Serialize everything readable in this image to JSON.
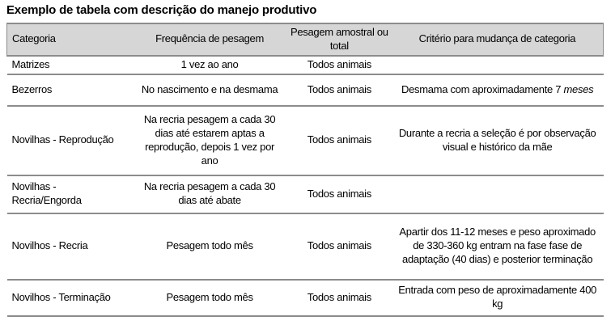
{
  "title": "Exemplo de tabela com descrição do manejo produtivo",
  "table": {
    "headers": [
      "Categoria",
      "Frequência de pesagem",
      "Pesagem amostral ou total",
      "Critério para mudança de categoria"
    ],
    "rows": [
      {
        "categoria": "Matrizes",
        "frequencia": "1 vez ao ano",
        "pesagem": "Todos animais",
        "criterio": ""
      },
      {
        "categoria": "Bezerros",
        "frequencia": "No nascimento e na desmama",
        "pesagem": "Todos animais",
        "criterio": "Desmama com aproximadamente 7",
        "criterio_italico": "meses"
      },
      {
        "categoria": "Novilhas - Reprodução",
        "frequencia": "Na recria pesagem a cada 30 dias até estarem aptas a reprodução, depois 1 vez por ano",
        "pesagem": "Todos animais",
        "criterio": "Durante a recria a seleção é por observação visual e histórico da mãe"
      },
      {
        "categoria": "Novilhas - Recria/Engorda",
        "frequencia": "Na recria pesagem a cada 30 dias até abate",
        "pesagem": "Todos animais",
        "criterio": ""
      },
      {
        "categoria": "Novilhos - Recria",
        "frequencia": "Pesagem todo mês",
        "pesagem": "Todos animais",
        "criterio": "Apartir dos 11-12 meses e peso aproximado de 330-360 kg entram na fase fase de adaptação (40 dias) e posterior terminação"
      },
      {
        "categoria": "Novilhos - Terminação",
        "frequencia": "Pesagem todo mês",
        "pesagem": "Todos animais",
        "criterio": "Entrada com peso de aproximadamente 400 kg"
      }
    ],
    "colors": {
      "header_bg": "#d6d6d6",
      "border": "#8c8c8c",
      "text": "#000000",
      "background": "#ffffff"
    }
  }
}
